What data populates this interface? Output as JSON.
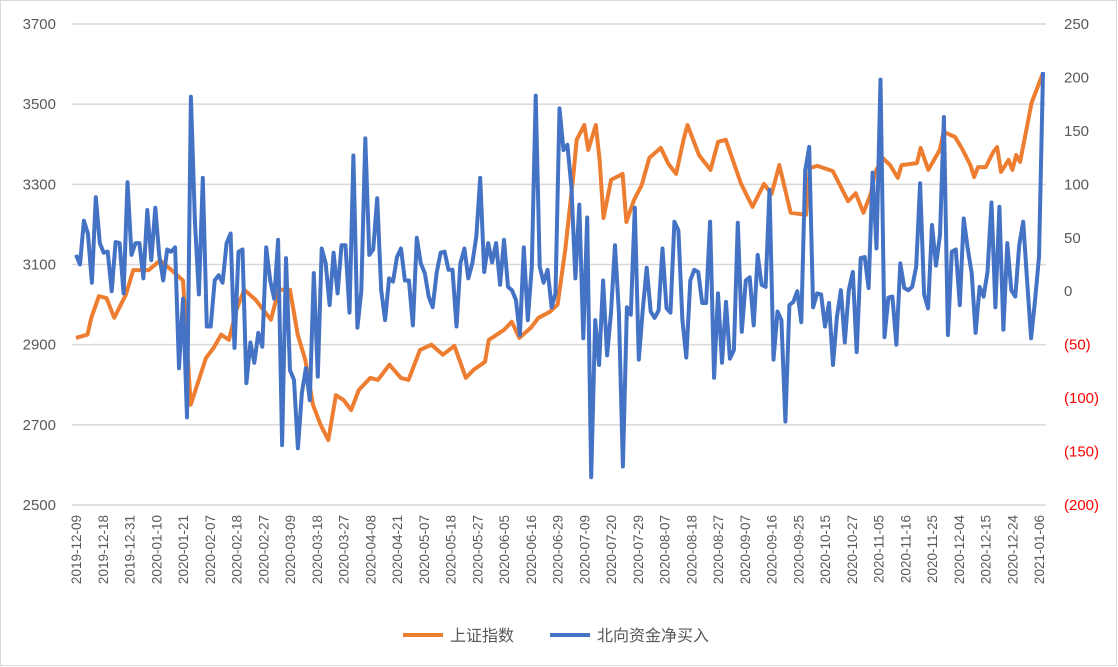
{
  "chart_data": {
    "type": "line",
    "title": "",
    "xlabel": "",
    "ylabel": "",
    "y2label": "",
    "grid": true,
    "legend_position": "bottom",
    "ylim": [
      2500,
      3700
    ],
    "yticks": [
      2500,
      2700,
      2900,
      3100,
      3300,
      3500,
      3700
    ],
    "y2lim": [
      -200,
      250
    ],
    "y2ticks": [
      -200,
      -150,
      -100,
      -50,
      0,
      50,
      100,
      150,
      200,
      250
    ],
    "y2tick_labels": [
      "(200)",
      "(150)",
      "(100)",
      "(50)",
      "0",
      "50",
      "100",
      "150",
      "200",
      "250"
    ],
    "x_day_count": 254,
    "x_label_every_days": 7,
    "x_tick_labels": [
      "2019-12-09",
      "2019-12-18",
      "2019-12-31",
      "2020-01-10",
      "2020-01-21",
      "2020-02-07",
      "2020-02-18",
      "2020-02-27",
      "2020-03-09",
      "2020-03-18",
      "2020-03-27",
      "2020-04-08",
      "2020-04-21",
      "2020-05-07",
      "2020-05-18",
      "2020-05-27",
      "2020-06-05",
      "2020-06-16",
      "2020-06-29",
      "2020-07-09",
      "2020-07-20",
      "2020-07-29",
      "2020-08-07",
      "2020-08-18",
      "2020-08-27",
      "2020-09-07",
      "2020-09-16",
      "2020-09-25",
      "2020-10-15",
      "2020-10-27",
      "2020-11-05",
      "2020-11-16",
      "2020-11-25",
      "2020-12-04",
      "2020-12-15",
      "2020-12-24",
      "2021-01-06"
    ],
    "colors": {
      "negative_tick": "#FF0000",
      "grid": "#D9D9D9"
    },
    "series": [
      {
        "name": "上证指数",
        "axis": "left",
        "color": "#ED7D31",
        "points_day_value": [
          [
            0,
            2917
          ],
          [
            3,
            2925
          ],
          [
            4,
            2967
          ],
          [
            6,
            3021
          ],
          [
            8,
            3016
          ],
          [
            10,
            2967
          ],
          [
            13,
            3024
          ],
          [
            15,
            3086
          ],
          [
            19,
            3086
          ],
          [
            22,
            3110
          ],
          [
            25,
            3086
          ],
          [
            28,
            3060
          ],
          [
            30,
            2750
          ],
          [
            34,
            2867
          ],
          [
            36,
            2892
          ],
          [
            38,
            2925
          ],
          [
            40,
            2912
          ],
          [
            42,
            2987
          ],
          [
            44,
            3037
          ],
          [
            47,
            3012
          ],
          [
            49,
            2987
          ],
          [
            51,
            2962
          ],
          [
            53,
            3037
          ],
          [
            56,
            3037
          ],
          [
            58,
            2925
          ],
          [
            60,
            2862
          ],
          [
            62,
            2750
          ],
          [
            64,
            2700
          ],
          [
            66,
            2662
          ],
          [
            68,
            2774
          ],
          [
            70,
            2762
          ],
          [
            72,
            2737
          ],
          [
            74,
            2787
          ],
          [
            77,
            2817
          ],
          [
            79,
            2812
          ],
          [
            82,
            2850
          ],
          [
            85,
            2817
          ],
          [
            87,
            2812
          ],
          [
            90,
            2887
          ],
          [
            93,
            2900
          ],
          [
            96,
            2875
          ],
          [
            99,
            2897
          ],
          [
            102,
            2817
          ],
          [
            104,
            2837
          ],
          [
            107,
            2857
          ],
          [
            108,
            2912
          ],
          [
            112,
            2937
          ],
          [
            114,
            2957
          ],
          [
            116,
            2917
          ],
          [
            119,
            2942
          ],
          [
            121,
            2967
          ],
          [
            124,
            2982
          ],
          [
            126,
            3000
          ],
          [
            128,
            3136
          ],
          [
            130,
            3311
          ],
          [
            131,
            3411
          ],
          [
            133,
            3448
          ],
          [
            134,
            3386
          ],
          [
            136,
            3448
          ],
          [
            137,
            3361
          ],
          [
            138,
            3216
          ],
          [
            140,
            3311
          ],
          [
            143,
            3326
          ],
          [
            144,
            3206
          ],
          [
            146,
            3261
          ],
          [
            148,
            3298
          ],
          [
            150,
            3366
          ],
          [
            153,
            3391
          ],
          [
            155,
            3351
          ],
          [
            157,
            3326
          ],
          [
            159,
            3413
          ],
          [
            160,
            3448
          ],
          [
            162,
            3398
          ],
          [
            163,
            3373
          ],
          [
            166,
            3336
          ],
          [
            168,
            3406
          ],
          [
            170,
            3411
          ],
          [
            174,
            3301
          ],
          [
            177,
            3244
          ],
          [
            180,
            3301
          ],
          [
            182,
            3276
          ],
          [
            184,
            3348
          ],
          [
            187,
            3229
          ],
          [
            191,
            3224
          ],
          [
            192,
            3341
          ],
          [
            194,
            3346
          ],
          [
            198,
            3333
          ],
          [
            202,
            3258
          ],
          [
            204,
            3278
          ],
          [
            206,
            3229
          ],
          [
            208,
            3278
          ],
          [
            209,
            3328
          ],
          [
            211,
            3366
          ],
          [
            213,
            3348
          ],
          [
            215,
            3316
          ],
          [
            216,
            3348
          ],
          [
            220,
            3353
          ],
          [
            221,
            3391
          ],
          [
            223,
            3336
          ],
          [
            226,
            3386
          ],
          [
            227,
            3431
          ],
          [
            230,
            3418
          ],
          [
            232,
            3386
          ],
          [
            234,
            3348
          ],
          [
            235,
            3318
          ],
          [
            236,
            3343
          ],
          [
            238,
            3343
          ],
          [
            240,
            3381
          ],
          [
            241,
            3393
          ],
          [
            242,
            3331
          ],
          [
            244,
            3361
          ],
          [
            245,
            3336
          ],
          [
            246,
            3373
          ],
          [
            247,
            3356
          ],
          [
            249,
            3453
          ],
          [
            250,
            3503
          ],
          [
            252,
            3553
          ],
          [
            253,
            3578
          ]
        ]
      },
      {
        "name": "北向资金净买入",
        "axis": "right",
        "color": "#4472C4",
        "values": [
          34,
          25,
          66,
          54,
          8,
          88,
          45,
          36,
          37,
          0,
          46,
          45,
          -2,
          102,
          34,
          45,
          45,
          12,
          76,
          29,
          78,
          34,
          10,
          39,
          37,
          41,
          -72,
          -7,
          -118,
          182,
          66,
          -3,
          106,
          -33,
          -33,
          10,
          15,
          8,
          45,
          54,
          -53,
          37,
          39,
          -86,
          -48,
          -67,
          -39,
          -52,
          41,
          10,
          -7,
          48,
          -144,
          31,
          -74,
          -83,
          -147,
          -95,
          -72,
          -102,
          17,
          -80,
          40,
          26,
          -13,
          36,
          -2,
          43,
          43,
          -20,
          127,
          -34,
          0,
          143,
          34,
          39,
          87,
          1,
          -27,
          12,
          9,
          32,
          40,
          10,
          10,
          -32,
          50,
          26,
          17,
          -5,
          -15,
          17,
          36,
          37,
          20,
          20,
          -33,
          26,
          40,
          12,
          26,
          51,
          106,
          18,
          45,
          27,
          45,
          6,
          48,
          4,
          1,
          -8,
          -41,
          41,
          -27,
          23,
          183,
          23,
          8,
          20,
          -15,
          -2,
          171,
          132,
          137,
          98,
          12,
          81,
          -44,
          69,
          -174,
          -27,
          -69,
          10,
          -60,
          -20,
          43,
          -20,
          -164,
          -15,
          -22,
          78,
          -64,
          -18,
          22,
          -19,
          -25,
          -18,
          40,
          -16,
          -20,
          65,
          57,
          -27,
          -62,
          10,
          20,
          18,
          -11,
          -11,
          65,
          -81,
          -2,
          -67,
          -10,
          -63,
          -55,
          64,
          -38,
          10,
          13,
          -32,
          34,
          6,
          4,
          95,
          -64,
          -19,
          -27,
          -122,
          -13,
          -10,
          0,
          -29,
          113,
          135,
          -15,
          -2,
          -3,
          -33,
          -11,
          -69,
          -24,
          1,
          -48,
          1,
          18,
          -57,
          31,
          32,
          3,
          111,
          40,
          198,
          -43,
          -6,
          -5,
          -50,
          26,
          3,
          1,
          4,
          23,
          101,
          -3,
          -16,
          62,
          24,
          53,
          163,
          -41,
          37,
          39,
          -13,
          68,
          40,
          17,
          -39,
          4,
          -5,
          18,
          83,
          -15,
          79,
          -36,
          45,
          1,
          -5,
          43,
          65,
          10,
          -44,
          -8,
          32,
          205
        ]
      }
    ]
  }
}
